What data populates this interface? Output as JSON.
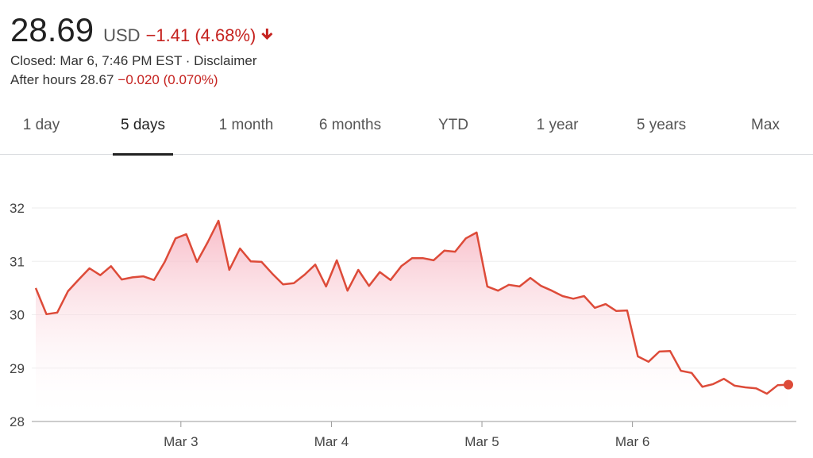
{
  "quote": {
    "price": "28.69",
    "currency": "USD",
    "change": "−1.41 (4.68%)",
    "status": "Closed: Mar 6, 7:46 PM EST · Disclaimer",
    "after_hours": "After hours 28.67",
    "after_hours_change": "−0.020 (0.070%)"
  },
  "tabs": [
    "1 day",
    "5 days",
    "1 month",
    "6 months",
    "YTD",
    "1 year",
    "5 years",
    "Max"
  ],
  "selected_tab": 1,
  "chart_data": {
    "type": "line",
    "color": "#dd4b39",
    "x": [
      0,
      1,
      2,
      3,
      4,
      5,
      6,
      7,
      8,
      9,
      10,
      11,
      12,
      13,
      14,
      15,
      16,
      17,
      18,
      19,
      20,
      21,
      22,
      23,
      24,
      25,
      26,
      27,
      28,
      29,
      30,
      31,
      32,
      33,
      34,
      35,
      36,
      37,
      38,
      39,
      40,
      41,
      42,
      43,
      44,
      45,
      46,
      47,
      48,
      49,
      50,
      51,
      52,
      53,
      54,
      55,
      56,
      57,
      58,
      59,
      60,
      61,
      62,
      63,
      64,
      65,
      66,
      67,
      68,
      69,
      70
    ],
    "values": [
      30.5,
      30.01,
      30.04,
      30.44,
      30.66,
      30.87,
      30.74,
      30.91,
      30.66,
      30.7,
      30.72,
      30.65,
      30.99,
      31.43,
      31.51,
      30.99,
      31.36,
      31.76,
      30.84,
      31.24,
      31.0,
      30.99,
      30.77,
      30.57,
      30.59,
      30.75,
      30.94,
      30.53,
      31.02,
      30.45,
      30.84,
      30.54,
      30.8,
      30.65,
      30.91,
      31.06,
      31.06,
      31.02,
      31.2,
      31.18,
      31.43,
      31.54,
      30.53,
      30.45,
      30.56,
      30.53,
      30.69,
      30.54,
      30.45,
      30.35,
      30.3,
      30.35,
      30.13,
      30.2,
      30.07,
      30.08,
      29.22,
      29.12,
      29.31,
      29.32,
      28.95,
      28.91,
      28.65,
      28.7,
      28.8,
      28.67,
      28.64,
      28.62,
      28.52,
      28.68,
      28.69
    ],
    "xlim": [
      0,
      70
    ],
    "xticks": [
      {
        "value": 13.5,
        "label": "Mar 3"
      },
      {
        "value": 27.5,
        "label": "Mar 4"
      },
      {
        "value": 41.5,
        "label": "Mar 5"
      },
      {
        "value": 55.5,
        "label": "Mar 6"
      }
    ],
    "ylim": [
      28,
      32
    ],
    "yticks": [
      28,
      29,
      30,
      31,
      32
    ],
    "grid": true
  }
}
